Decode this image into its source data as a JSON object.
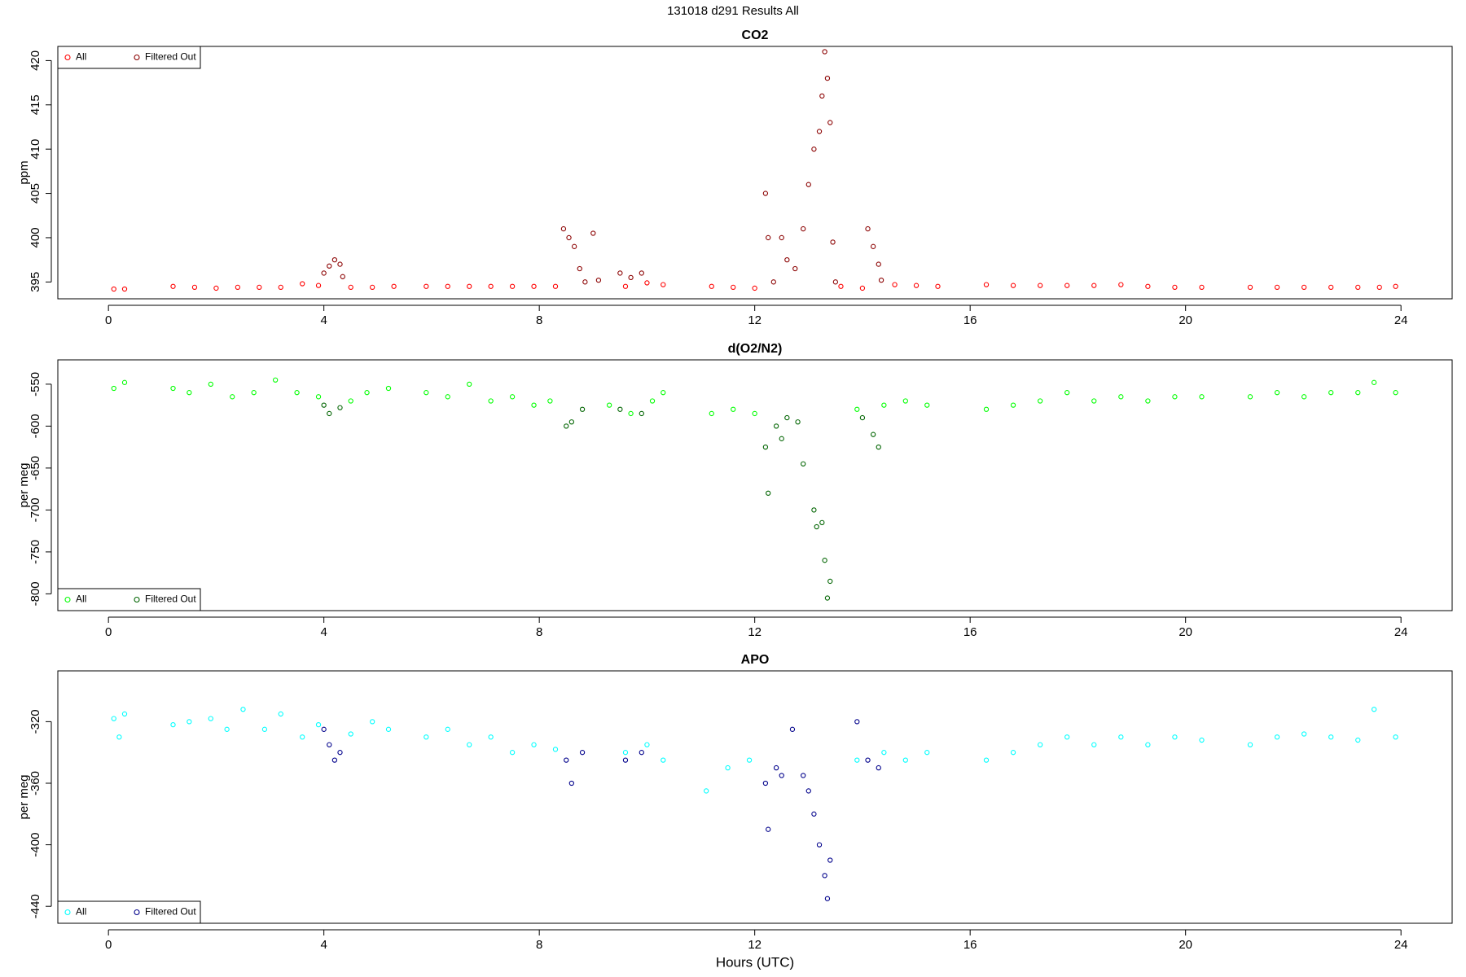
{
  "title": "131018   d291   Results All",
  "chart_data": [
    {
      "type": "scatter",
      "title": "CO2",
      "ylabel": "ppm",
      "legend": "top-left",
      "xlim": [
        -0.94,
        24.95
      ],
      "xticks": [
        0,
        4,
        8,
        12,
        16,
        20,
        24
      ],
      "ylim": [
        393.1,
        421.6
      ],
      "yticks": [
        395,
        400,
        405,
        410,
        415,
        420
      ],
      "series": [
        {
          "name": "All",
          "color": "#ff0000",
          "x": [
            0.1,
            0.3,
            1.2,
            1.6,
            2.0,
            2.4,
            2.8,
            3.2,
            3.6,
            3.9,
            4.5,
            4.9,
            5.3,
            5.9,
            6.3,
            6.7,
            7.1,
            7.5,
            7.9,
            8.3,
            9.6,
            10.0,
            10.3,
            11.2,
            11.6,
            12.0,
            13.6,
            14.0,
            14.6,
            15.0,
            15.4,
            16.3,
            16.8,
            17.3,
            17.8,
            18.3,
            18.8,
            19.3,
            19.8,
            20.3,
            21.2,
            21.7,
            22.2,
            22.7,
            23.2,
            23.6,
            23.9
          ],
          "values": [
            394.2,
            394.2,
            394.5,
            394.4,
            394.3,
            394.4,
            394.4,
            394.4,
            394.8,
            394.6,
            394.4,
            394.4,
            394.5,
            394.5,
            394.5,
            394.5,
            394.5,
            394.5,
            394.5,
            394.5,
            394.5,
            394.9,
            394.7,
            394.5,
            394.4,
            394.3,
            394.5,
            394.3,
            394.7,
            394.6,
            394.5,
            394.7,
            394.6,
            394.6,
            394.6,
            394.6,
            394.7,
            394.5,
            394.4,
            394.4,
            394.4,
            394.4,
            394.4,
            394.4,
            394.4,
            394.4,
            394.5
          ]
        },
        {
          "name": "Filtered Out",
          "color": "#8b0000",
          "x": [
            4.0,
            4.1,
            4.2,
            4.3,
            4.35,
            8.45,
            8.55,
            8.65,
            8.75,
            8.85,
            9.0,
            9.1,
            9.5,
            9.7,
            9.9,
            12.2,
            12.25,
            12.35,
            12.5,
            12.6,
            12.75,
            12.9,
            13.0,
            13.1,
            13.2,
            13.25,
            13.3,
            13.35,
            13.4,
            13.45,
            13.5,
            14.1,
            14.2,
            14.3,
            14.35
          ],
          "values": [
            396.0,
            396.8,
            397.5,
            397.0,
            395.6,
            401.0,
            400.0,
            399.0,
            396.5,
            395.0,
            400.5,
            395.2,
            396.0,
            395.5,
            396.0,
            405.0,
            400.0,
            395.0,
            400.0,
            397.5,
            396.5,
            401.0,
            406.0,
            410.0,
            412.0,
            416.0,
            421.0,
            418.0,
            413.0,
            399.5,
            395.0,
            401.0,
            399.0,
            397.0,
            395.2
          ]
        }
      ]
    },
    {
      "type": "scatter",
      "title": "d(O2/N2)",
      "ylabel": "per meg",
      "legend": "bottom-left",
      "xlim": [
        -0.94,
        24.95
      ],
      "xticks": [
        0,
        4,
        8,
        12,
        16,
        20,
        24
      ],
      "ylim": [
        -820,
        -521
      ],
      "yticks": [
        -800,
        -750,
        -700,
        -650,
        -600,
        -550
      ],
      "series": [
        {
          "name": "All",
          "color": "#00ff00",
          "x": [
            0.1,
            0.3,
            1.2,
            1.5,
            1.9,
            2.3,
            2.7,
            3.1,
            3.5,
            3.9,
            4.5,
            4.8,
            5.2,
            5.9,
            6.3,
            6.7,
            7.1,
            7.5,
            7.9,
            8.2,
            9.3,
            9.7,
            10.1,
            10.3,
            11.2,
            11.6,
            12.0,
            13.9,
            14.4,
            14.8,
            15.2,
            16.3,
            16.8,
            17.3,
            17.8,
            18.3,
            18.8,
            19.3,
            19.8,
            20.3,
            21.2,
            21.7,
            22.2,
            22.7,
            23.2,
            23.5,
            23.9
          ],
          "values": [
            -555,
            -548,
            -555,
            -560,
            -550,
            -565,
            -560,
            -545,
            -560,
            -565,
            -570,
            -560,
            -555,
            -560,
            -565,
            -550,
            -570,
            -565,
            -575,
            -570,
            -575,
            -585,
            -570,
            -560,
            -585,
            -580,
            -585,
            -580,
            -575,
            -570,
            -575,
            -580,
            -575,
            -570,
            -560,
            -570,
            -565,
            -570,
            -565,
            -565,
            -565,
            -560,
            -565,
            -560,
            -560,
            -548,
            -560
          ]
        },
        {
          "name": "Filtered Out",
          "color": "#006400",
          "x": [
            4.0,
            4.1,
            4.3,
            8.5,
            8.6,
            8.8,
            9.5,
            9.9,
            12.2,
            12.25,
            12.4,
            12.5,
            12.6,
            12.8,
            12.9,
            13.1,
            13.15,
            13.25,
            13.3,
            13.35,
            13.4,
            14.0,
            14.2,
            14.3
          ],
          "values": [
            -575,
            -585,
            -578,
            -600,
            -595,
            -580,
            -580,
            -585,
            -625,
            -680,
            -600,
            -615,
            -590,
            -595,
            -645,
            -700,
            -720,
            -715,
            -760,
            -805,
            -785,
            -590,
            -610,
            -625
          ]
        }
      ]
    },
    {
      "type": "scatter",
      "title": "APO",
      "ylabel": "per meg",
      "xlabel": "Hours (UTC)",
      "legend": "bottom-left",
      "xlim": [
        -0.94,
        24.95
      ],
      "xticks": [
        0,
        4,
        8,
        12,
        16,
        20,
        24
      ],
      "ylim": [
        -451,
        -287
      ],
      "yticks": [
        -440,
        -400,
        -360,
        -320
      ],
      "series": [
        {
          "name": "All",
          "color": "#00ffff",
          "x": [
            0.1,
            0.2,
            0.3,
            1.2,
            1.5,
            1.9,
            2.2,
            2.5,
            2.9,
            3.2,
            3.6,
            3.9,
            4.5,
            4.9,
            5.2,
            5.9,
            6.3,
            6.7,
            7.1,
            7.5,
            7.9,
            8.3,
            9.6,
            10.0,
            10.3,
            11.1,
            11.5,
            11.9,
            13.9,
            14.4,
            14.8,
            15.2,
            16.3,
            16.8,
            17.3,
            17.8,
            18.3,
            18.8,
            19.3,
            19.8,
            20.3,
            21.2,
            21.7,
            22.2,
            22.7,
            23.2,
            23.5,
            23.9
          ],
          "values": [
            -318,
            -330,
            -315,
            -322,
            -320,
            -318,
            -325,
            -312,
            -325,
            -315,
            -330,
            -322,
            -328,
            -320,
            -325,
            -330,
            -325,
            -335,
            -330,
            -340,
            -335,
            -338,
            -340,
            -335,
            -345,
            -365,
            -350,
            -345,
            -345,
            -340,
            -345,
            -340,
            -345,
            -340,
            -335,
            -330,
            -335,
            -330,
            -335,
            -330,
            -332,
            -335,
            -330,
            -328,
            -330,
            -332,
            -312,
            -330
          ]
        },
        {
          "name": "Filtered Out",
          "color": "#00008b",
          "x": [
            4.0,
            4.1,
            4.2,
            4.3,
            8.5,
            8.6,
            8.8,
            9.6,
            9.9,
            12.2,
            12.25,
            12.4,
            12.5,
            12.7,
            12.9,
            13.0,
            13.1,
            13.2,
            13.3,
            13.35,
            13.4,
            13.9,
            14.1,
            14.3
          ],
          "values": [
            -325,
            -335,
            -345,
            -340,
            -345,
            -360,
            -340,
            -345,
            -340,
            -360,
            -390,
            -350,
            -355,
            -325,
            -355,
            -365,
            -380,
            -400,
            -420,
            -435,
            -410,
            -320,
            -345,
            -350
          ]
        }
      ]
    }
  ]
}
